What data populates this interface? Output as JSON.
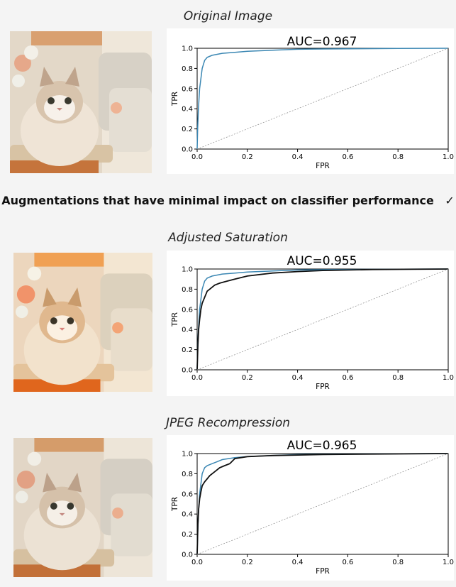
{
  "sections": [
    {
      "title": "Original Image",
      "auc_text": "AUC=0.967"
    },
    {
      "title": "Adjusted Saturation",
      "auc_text": "AUC=0.955"
    },
    {
      "title": "JPEG Recompression",
      "auc_text": "AUC=0.965"
    }
  ],
  "banner": {
    "text": "Augmentations that have minimal impact on classifier performance",
    "check": "✓"
  },
  "colors": {
    "baseline_curve": "#3b87b3",
    "augmented_curve": "#111111",
    "diagonal": "#888888"
  },
  "chart_data": [
    {
      "type": "line",
      "title": "AUC=0.967",
      "xlabel": "FPR",
      "ylabel": "TPR",
      "xlim": [
        0,
        1
      ],
      "ylim": [
        0,
        1
      ],
      "xticks": [
        "0.0",
        "0.2",
        "0.4",
        "0.6",
        "0.8",
        "1.0"
      ],
      "yticks": [
        "0.0",
        "0.2",
        "0.4",
        "0.6",
        "0.8",
        "1.0"
      ],
      "grid": false,
      "series": [
        {
          "color": "#3b87b3",
          "x": [
            0,
            0.002,
            0.005,
            0.01,
            0.015,
            0.02,
            0.03,
            0.04,
            0.06,
            0.08,
            0.1,
            0.15,
            0.2,
            0.3,
            0.4,
            0.5,
            0.6,
            0.8,
            1.0
          ],
          "y": [
            0,
            0.2,
            0.4,
            0.6,
            0.7,
            0.8,
            0.88,
            0.91,
            0.93,
            0.94,
            0.95,
            0.96,
            0.97,
            0.98,
            0.99,
            0.993,
            0.995,
            0.998,
            1.0
          ]
        },
        {
          "color": "#888888",
          "dashed": true,
          "x": [
            0,
            1
          ],
          "y": [
            0,
            1
          ]
        }
      ]
    },
    {
      "type": "line",
      "title": "AUC=0.955",
      "xlabel": "FPR",
      "ylabel": "TPR",
      "xlim": [
        0,
        1
      ],
      "ylim": [
        0,
        1
      ],
      "xticks": [
        "0.0",
        "0.2",
        "0.4",
        "0.6",
        "0.8",
        "1.0"
      ],
      "yticks": [
        "0.0",
        "0.2",
        "0.4",
        "0.6",
        "0.8",
        "1.0"
      ],
      "grid": false,
      "series": [
        {
          "color": "#3b87b3",
          "x": [
            0,
            0.002,
            0.005,
            0.01,
            0.015,
            0.02,
            0.03,
            0.04,
            0.06,
            0.08,
            0.1,
            0.15,
            0.2,
            0.3,
            0.4,
            0.5,
            0.6,
            0.8,
            1.0
          ],
          "y": [
            0,
            0.2,
            0.4,
            0.6,
            0.7,
            0.8,
            0.88,
            0.91,
            0.93,
            0.94,
            0.95,
            0.96,
            0.97,
            0.98,
            0.99,
            0.993,
            0.995,
            0.998,
            1.0
          ]
        },
        {
          "color": "#111111",
          "x": [
            0,
            0.003,
            0.006,
            0.01,
            0.015,
            0.02,
            0.03,
            0.04,
            0.05,
            0.07,
            0.09,
            0.12,
            0.15,
            0.2,
            0.3,
            0.4,
            0.5,
            0.7,
            1.0
          ],
          "y": [
            0,
            0.25,
            0.4,
            0.5,
            0.6,
            0.66,
            0.72,
            0.78,
            0.8,
            0.84,
            0.86,
            0.88,
            0.9,
            0.93,
            0.96,
            0.975,
            0.985,
            0.995,
            1.0
          ]
        },
        {
          "color": "#888888",
          "dashed": true,
          "x": [
            0,
            1
          ],
          "y": [
            0,
            1
          ]
        }
      ]
    },
    {
      "type": "line",
      "title": "AUC=0.965",
      "xlabel": "FPR",
      "ylabel": "TPR",
      "xlim": [
        0,
        1
      ],
      "ylim": [
        0,
        1
      ],
      "xticks": [
        "0.0",
        "0.2",
        "0.4",
        "0.6",
        "0.8",
        "1.0"
      ],
      "yticks": [
        "0.0",
        "0.2",
        "0.4",
        "0.6",
        "0.8",
        "1.0"
      ],
      "grid": false,
      "series": [
        {
          "color": "#3b87b3",
          "x": [
            0,
            0.002,
            0.005,
            0.01,
            0.015,
            0.02,
            0.03,
            0.04,
            0.06,
            0.08,
            0.1,
            0.15,
            0.2,
            0.3,
            0.4,
            0.5,
            0.6,
            0.8,
            1.0
          ],
          "y": [
            0,
            0.2,
            0.4,
            0.6,
            0.7,
            0.8,
            0.86,
            0.88,
            0.9,
            0.92,
            0.94,
            0.96,
            0.97,
            0.98,
            0.99,
            0.993,
            0.995,
            0.998,
            1.0
          ]
        },
        {
          "color": "#111111",
          "x": [
            0,
            0.003,
            0.006,
            0.01,
            0.015,
            0.02,
            0.03,
            0.04,
            0.05,
            0.07,
            0.09,
            0.11,
            0.13,
            0.15,
            0.2,
            0.3,
            0.5,
            0.7,
            1.0
          ],
          "y": [
            0,
            0.3,
            0.45,
            0.55,
            0.62,
            0.68,
            0.72,
            0.75,
            0.78,
            0.82,
            0.86,
            0.88,
            0.9,
            0.95,
            0.97,
            0.98,
            0.99,
            0.995,
            1.0
          ]
        },
        {
          "color": "#888888",
          "dashed": true,
          "x": [
            0,
            1
          ],
          "y": [
            0,
            1
          ]
        }
      ]
    }
  ]
}
